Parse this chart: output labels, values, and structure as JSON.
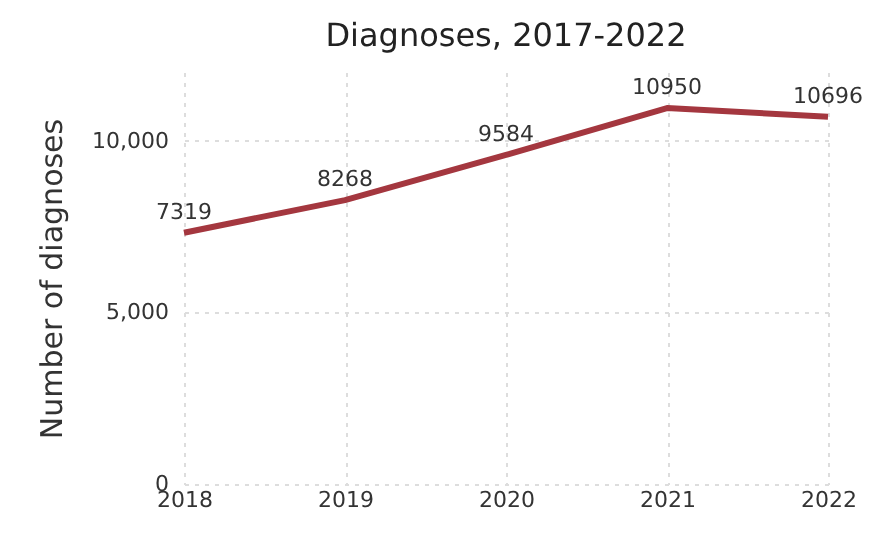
{
  "chart_data": {
    "type": "line",
    "title": "Diagnoses, 2017-2022",
    "ylabel": "Number of diagnoses",
    "categories": [
      "2018",
      "2019",
      "2020",
      "2021",
      "2022"
    ],
    "series": [
      {
        "color": "#a4373f",
        "values": [
          7319,
          8268,
          9584,
          10950,
          10696
        ]
      }
    ],
    "ylim": [
      0,
      12000
    ],
    "yticks": [
      {
        "value": 0,
        "label": "0"
      },
      {
        "value": 5000,
        "label": "5,000"
      },
      {
        "value": 10000,
        "label": "10,000"
      }
    ],
    "grid": true,
    "data_labels": true,
    "marker": "none",
    "line_style": "solid"
  }
}
